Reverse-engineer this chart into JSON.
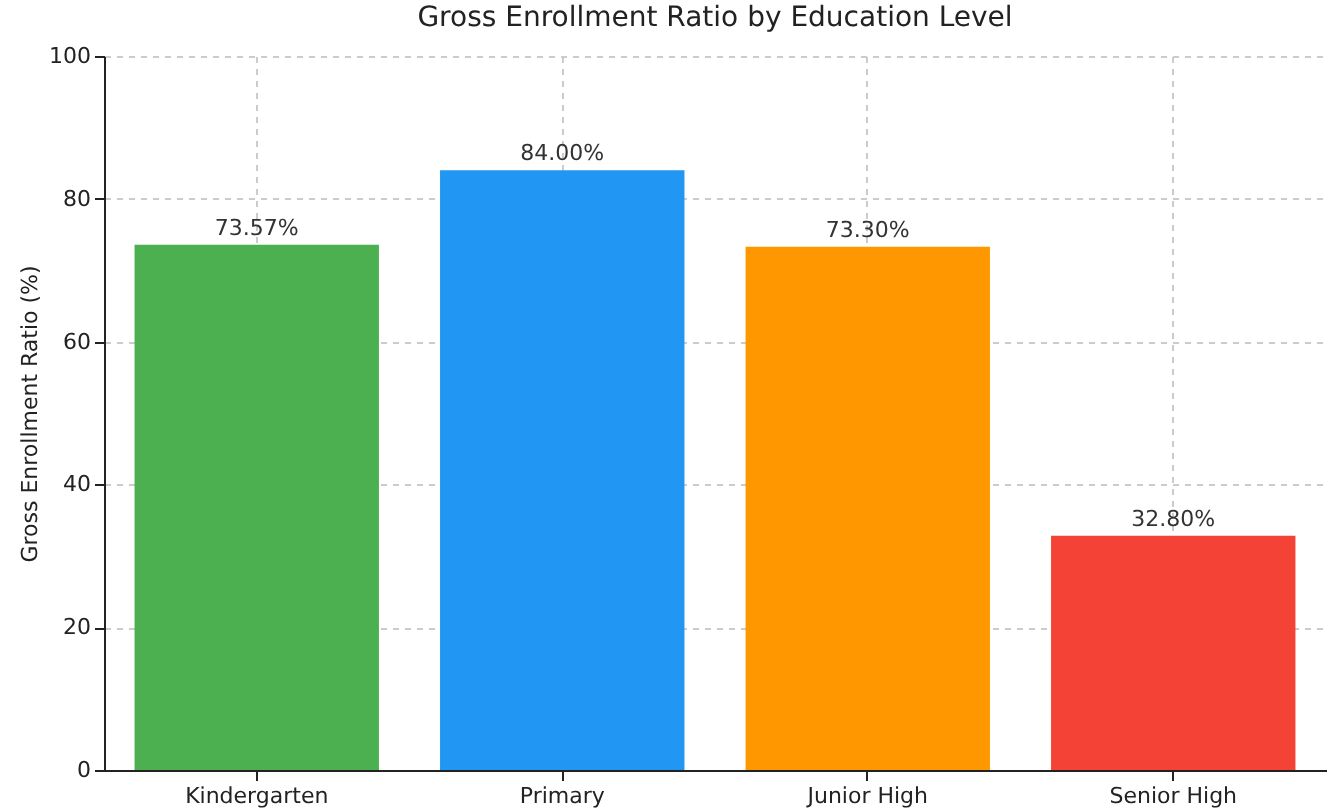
{
  "chart_data": {
    "type": "bar",
    "title": "Gross Enrollment Ratio by Education Level",
    "ylabel": "Gross Enrollment Ratio (%)",
    "categories": [
      "Kindergarten",
      "Primary",
      "Junior High",
      "Senior High"
    ],
    "values": [
      73.57,
      84.0,
      73.3,
      32.8
    ],
    "colors": [
      "#4caf50",
      "#2196f3",
      "#ff9800",
      "#f44336"
    ],
    "value_labels": [
      "73.57%",
      "84.00%",
      "73.30%",
      "32.80%"
    ],
    "ylim": [
      0,
      100
    ],
    "yticks": [
      0,
      20,
      40,
      60,
      80,
      100
    ],
    "grid": true
  }
}
